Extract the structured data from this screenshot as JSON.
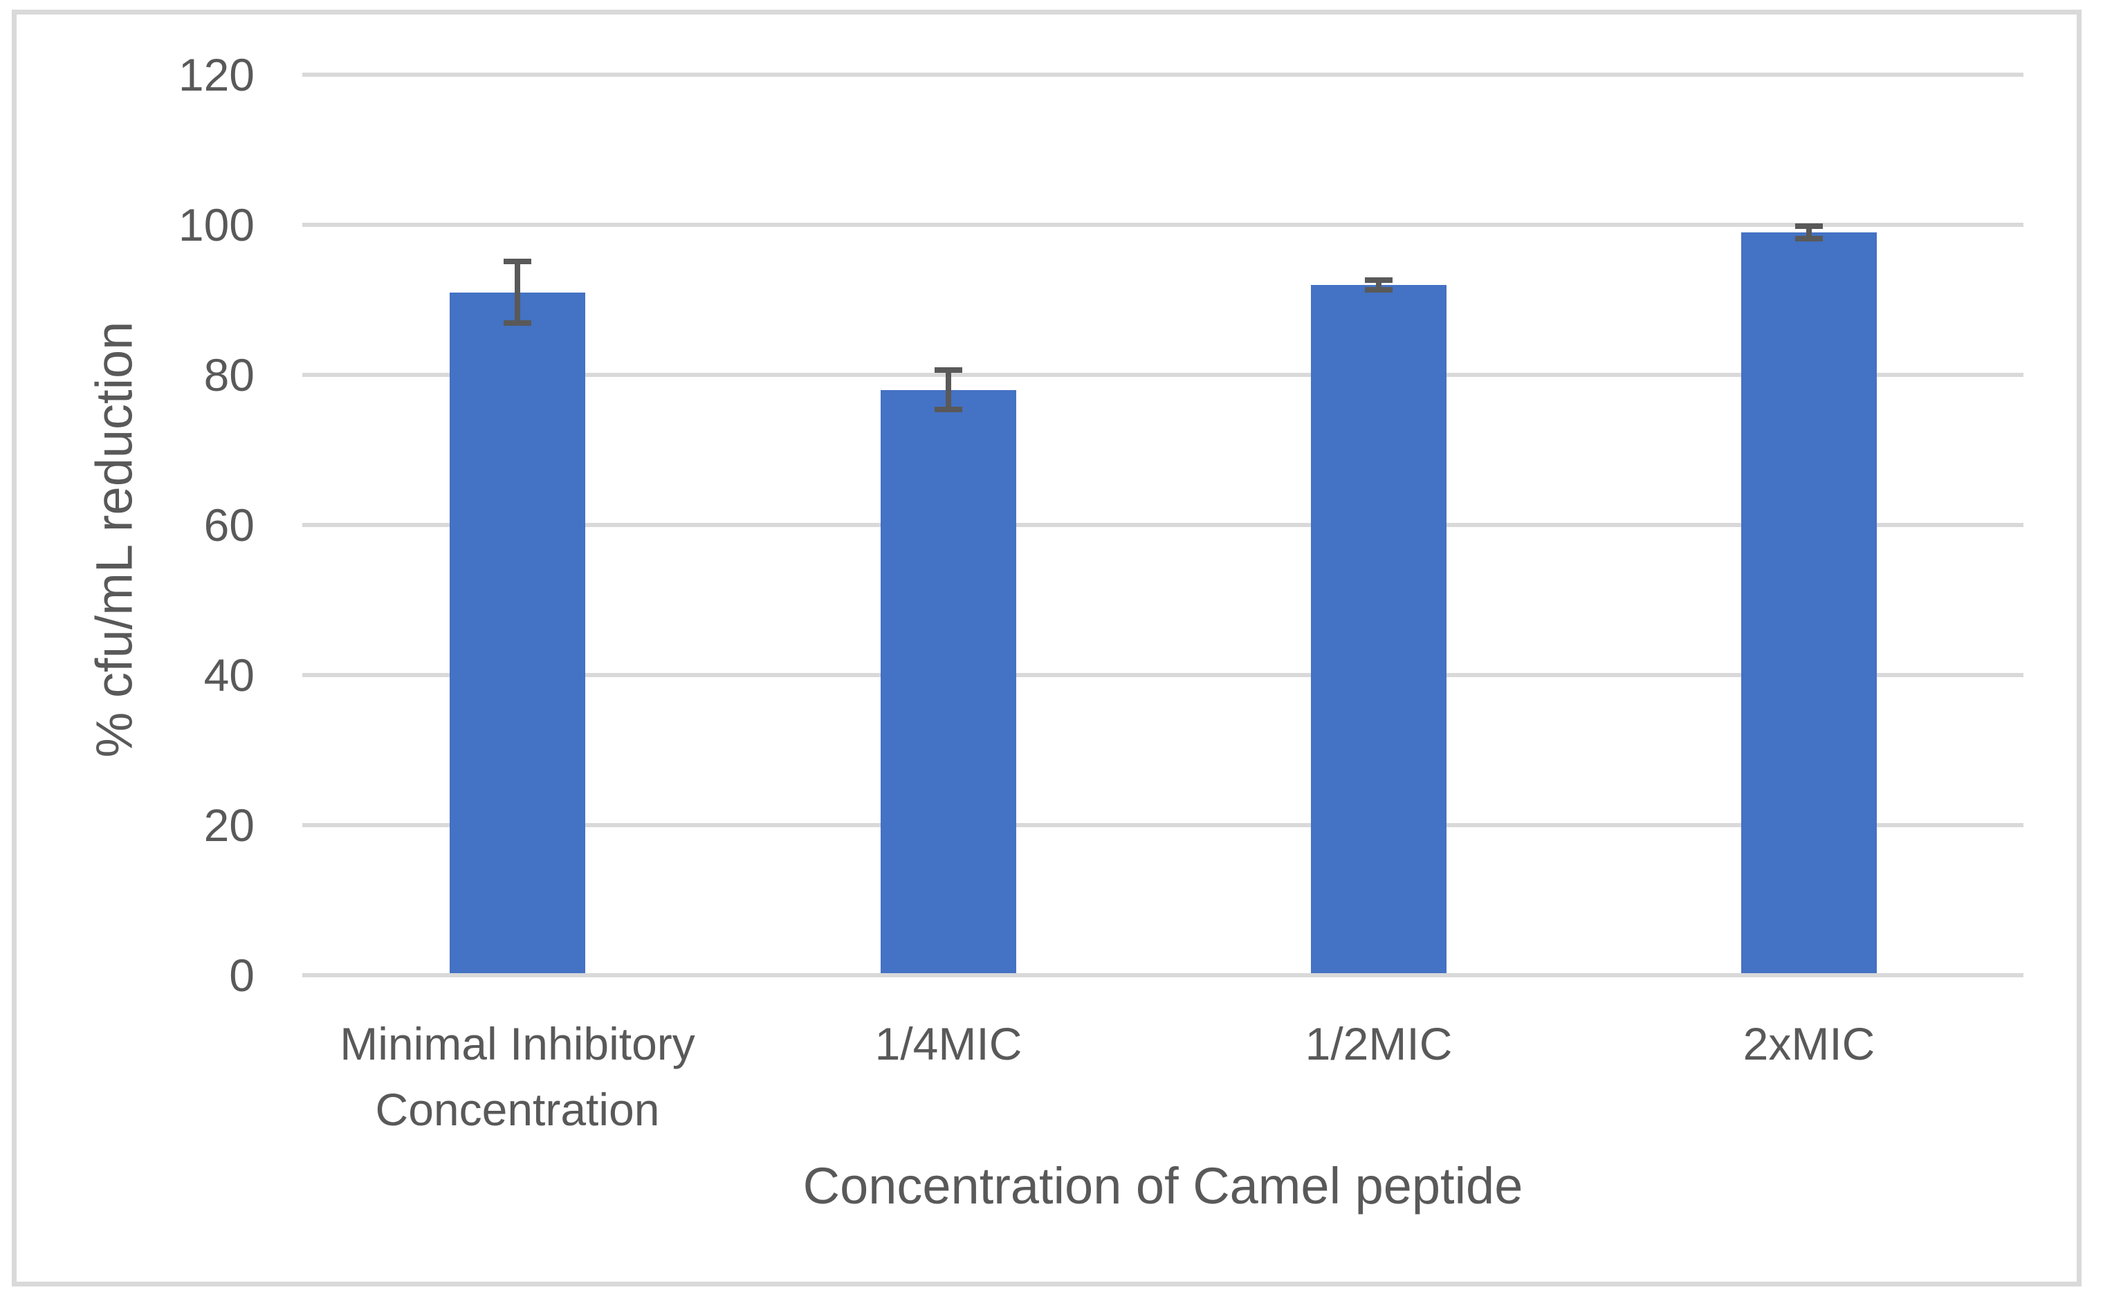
{
  "chart_data": {
    "type": "bar",
    "categories": [
      "Minimal Inhibitory Concentration",
      "1/4MIC",
      "1/2MIC",
      "2xMIC"
    ],
    "values": [
      91,
      78,
      92,
      99
    ],
    "error_bars": [
      4.5,
      3,
      1,
      1.2
    ],
    "title": "",
    "xlabel": "Concentration of Camel peptide",
    "ylabel": "% cfu/mL reduction",
    "yticks": [
      0,
      20,
      40,
      60,
      80,
      100,
      120
    ],
    "ylim": [
      0,
      120
    ],
    "grid": true,
    "legend": false,
    "series_count": 1,
    "colors": {
      "bar": "#4472C4",
      "error_bar": "#595959",
      "gridline": "#D9D9D9",
      "axis_text": "#595959",
      "chart_border": "#D9D9D9",
      "background": "#FFFFFF"
    }
  }
}
